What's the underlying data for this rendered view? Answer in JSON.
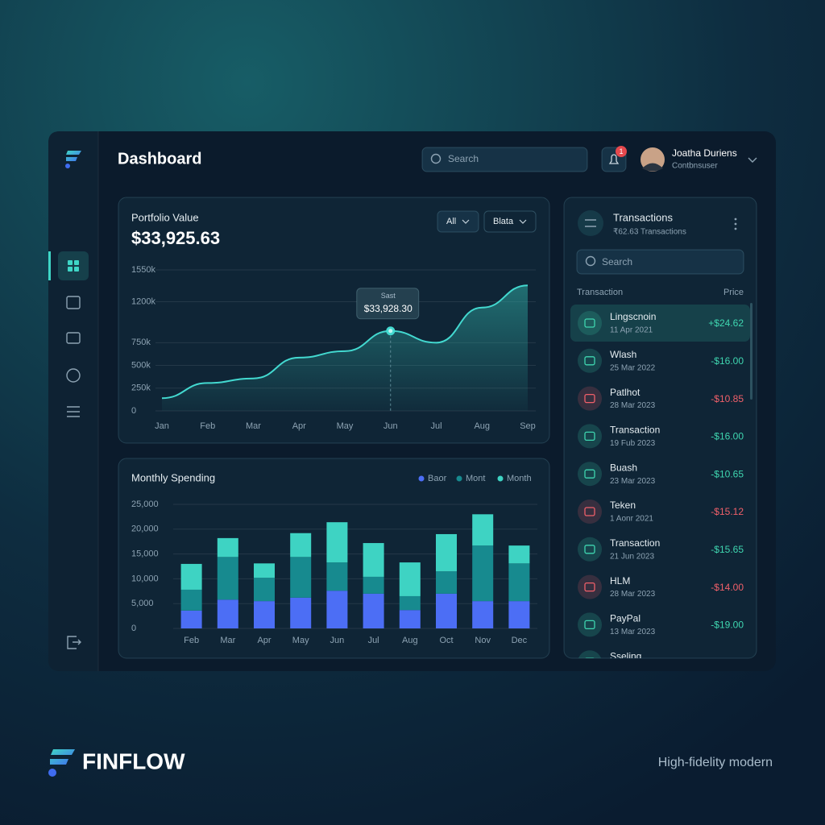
{
  "header": {
    "title": "Dashboard",
    "search_placeholder": "Search",
    "notifications": "1",
    "user_name": "Joatha Duriens",
    "user_role": "Contbnsuser"
  },
  "portfolio_filters": [
    "All",
    "Blata"
  ],
  "chart_data": [
    {
      "type": "line",
      "title": "Portfolio Value",
      "subtitle": "$33,925.63",
      "categories": [
        "Jan",
        "Feb",
        "Mar",
        "Apr",
        "May",
        "Jun",
        "Jul",
        "Aug",
        "Sep"
      ],
      "values": [
        140000,
        307000,
        357000,
        586000,
        657000,
        879000,
        750000,
        1136000,
        1380000
      ],
      "color": "#43d9d0",
      "ylim": [
        0,
        1550000
      ],
      "yticks": [
        0,
        {
          "value": 250000,
          "label": "250k"
        },
        {
          "value": 500000,
          "label": "500k"
        },
        {
          "value": 750000,
          "label": "750k"
        },
        {
          "value": 1200000,
          "label": "1200k"
        },
        {
          "value": 1550000,
          "label": "1550k"
        }
      ],
      "grid": true,
      "tooltip": {
        "label": "Sast",
        "value_text": "$33,928.30"
      }
    },
    {
      "type": "bar",
      "title": "Monthly Spending",
      "stacked": true,
      "categories": [
        "Feb",
        "Mar",
        "Apr",
        "May",
        "Jun",
        "Jul",
        "Aug",
        "Oct",
        "Nov",
        "Dec"
      ],
      "series": [
        {
          "name": "Baor",
          "color": "#4c6ef5",
          "values": [
            3600,
            5800,
            5500,
            6200,
            7600,
            7000,
            3700,
            7000,
            5500,
            5500
          ]
        },
        {
          "name": "Mont",
          "color": "#178a8f",
          "values": [
            4200,
            8600,
            4700,
            8200,
            5700,
            3400,
            2800,
            4500,
            11200,
            7600
          ]
        },
        {
          "name": "Month",
          "color": "#3ed3c3",
          "values": [
            5200,
            3800,
            2900,
            4800,
            8100,
            6800,
            6800,
            7500,
            6300,
            3600
          ]
        }
      ],
      "ylim": [
        0,
        25000
      ],
      "yticks": [
        0,
        {
          "value": 5000,
          "label": "5,000"
        },
        {
          "value": 10000,
          "label": "10,000"
        },
        {
          "value": 15000,
          "label": "15,000"
        },
        {
          "value": 20000,
          "label": "20,000"
        },
        {
          "value": 25000,
          "label": "25,000"
        }
      ],
      "grid": true
    }
  ],
  "transactions": {
    "title": "Transactions",
    "subtitle": "₹62.63 Transactions",
    "search_placeholder": "Search",
    "columns": [
      "Transaction",
      "Price"
    ],
    "rows": [
      {
        "name": "Lingscnoin",
        "date": "11 Apr 2021",
        "price": "+$24.62",
        "color": "#3fd6b0"
      },
      {
        "name": "Wlash",
        "date": "25 Mar 2022",
        "price": "-$16.00",
        "color": "#3fd6b0"
      },
      {
        "name": "Patlhot",
        "date": "28 Mar 2023",
        "price": "-$10.85",
        "color": "#f0606a"
      },
      {
        "name": "Transaction",
        "date": "19 Fub 2023",
        "price": "-$16.00",
        "color": "#3fd6b0"
      },
      {
        "name": "Buash",
        "date": "23 Mar 2023",
        "price": "-$10.65",
        "color": "#3fd6b0"
      },
      {
        "name": "Teken",
        "date": "1 Aonr 2021",
        "price": "-$15.12",
        "color": "#f0606a"
      },
      {
        "name": "Transaction",
        "date": "21 Jun 2023",
        "price": "-$15.65",
        "color": "#3fd6b0"
      },
      {
        "name": "HLM",
        "date": "28 Mar 2023",
        "price": "-$14.00",
        "color": "#f0606a"
      },
      {
        "name": "PayPal",
        "date": "13 Mar 2023",
        "price": "-$19.00",
        "color": "#3fd6b0"
      },
      {
        "name": "Sseling"
      }
    ]
  },
  "footer": {
    "brand": "FINFLOW",
    "tagline": "High-fidelity modern"
  }
}
